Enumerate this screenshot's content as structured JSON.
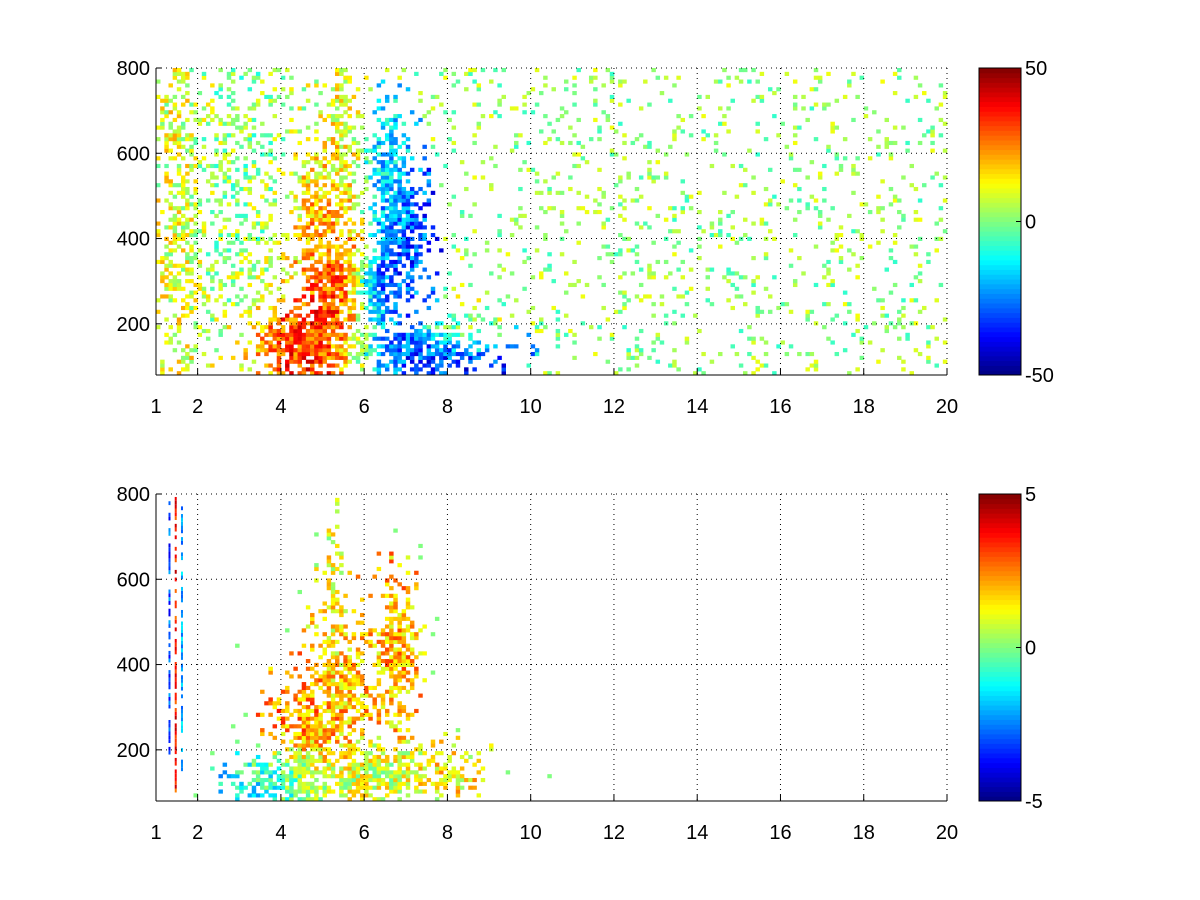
{
  "chart_data": [
    {
      "type": "heatmap",
      "title": "",
      "xlabel": "",
      "ylabel": "",
      "xlim": [
        1,
        20
      ],
      "ylim": [
        80,
        800
      ],
      "xticks": [
        1,
        2,
        4,
        6,
        8,
        10,
        12,
        14,
        16,
        18,
        20
      ],
      "xtick_labels": [
        "1",
        "2",
        "4",
        "6",
        "8",
        "10",
        "12",
        "14",
        "16",
        "18",
        "20"
      ],
      "yticks": [
        200,
        400,
        600,
        800
      ],
      "ytick_labels": [
        "200",
        "400",
        "600",
        "800"
      ],
      "grid": true,
      "colormap": "jet",
      "clim": [
        -50,
        50
      ],
      "colorbar_ticks": [
        -50,
        0,
        50
      ],
      "colorbar_labels": [
        "-50",
        "0",
        "50"
      ],
      "blobs": [
        {
          "x": 4.6,
          "y": 160,
          "sx": 0.9,
          "sy": 70,
          "value": 42,
          "density": 0.95
        },
        {
          "x": 5.3,
          "y": 290,
          "sx": 0.55,
          "sy": 120,
          "value": 36,
          "density": 0.9
        },
        {
          "x": 5.0,
          "y": 420,
          "sx": 0.5,
          "sy": 140,
          "value": 18,
          "density": 0.8
        },
        {
          "x": 5.5,
          "y": 620,
          "sx": 0.25,
          "sy": 160,
          "value": 10,
          "density": 0.7
        },
        {
          "x": 6.8,
          "y": 420,
          "sx": 0.45,
          "sy": 110,
          "value": -30,
          "density": 0.9
        },
        {
          "x": 6.6,
          "y": 560,
          "sx": 0.35,
          "sy": 90,
          "value": -12,
          "density": 0.75
        },
        {
          "x": 6.3,
          "y": 270,
          "sx": 0.4,
          "sy": 60,
          "value": -35,
          "density": 0.85
        },
        {
          "x": 7.2,
          "y": 140,
          "sx": 1.2,
          "sy": 40,
          "value": -32,
          "density": 0.9
        },
        {
          "x": 8.4,
          "y": 190,
          "sx": 0.6,
          "sy": 30,
          "value": 8,
          "density": 0.6
        },
        {
          "x": 1.6,
          "y": 440,
          "sx": 0.35,
          "sy": 360,
          "value": 12,
          "density": 0.55
        },
        {
          "x": 3.0,
          "y": 500,
          "sx": 1.0,
          "sy": 300,
          "value": 2,
          "density": 0.35
        }
      ],
      "background": {
        "density": 0.1,
        "value_range": [
          -8,
          12
        ]
      }
    },
    {
      "type": "heatmap",
      "title": "",
      "xlabel": "",
      "ylabel": "",
      "xlim": [
        1,
        20
      ],
      "ylim": [
        80,
        800
      ],
      "xticks": [
        1,
        2,
        4,
        6,
        8,
        10,
        12,
        14,
        16,
        18,
        20
      ],
      "xtick_labels": [
        "1",
        "2",
        "4",
        "6",
        "8",
        "10",
        "12",
        "14",
        "16",
        "18",
        "20"
      ],
      "yticks": [
        200,
        400,
        600,
        800
      ],
      "ytick_labels": [
        "200",
        "400",
        "600",
        "800"
      ],
      "grid": true,
      "colormap": "jet",
      "clim": [
        -5,
        5
      ],
      "colorbar_ticks": [
        -5,
        0,
        5
      ],
      "colorbar_labels": [
        "-5",
        "0",
        "5"
      ],
      "blobs": [
        {
          "x": 4.7,
          "y": 230,
          "sx": 0.6,
          "sy": 90,
          "value": 2.5,
          "density": 0.9
        },
        {
          "x": 5.4,
          "y": 330,
          "sx": 0.5,
          "sy": 130,
          "value": 1.8,
          "density": 0.85
        },
        {
          "x": 5.3,
          "y": 560,
          "sx": 0.15,
          "sy": 120,
          "value": 1.0,
          "density": 0.6
        },
        {
          "x": 6.8,
          "y": 420,
          "sx": 0.35,
          "sy": 120,
          "value": 2.0,
          "density": 0.85
        },
        {
          "x": 4.2,
          "y": 130,
          "sx": 0.8,
          "sy": 45,
          "value": -1.5,
          "density": 0.85
        },
        {
          "x": 6.2,
          "y": 150,
          "sx": 1.2,
          "sy": 45,
          "value": 0.8,
          "density": 0.9
        },
        {
          "x": 8.0,
          "y": 150,
          "sx": 0.5,
          "sy": 40,
          "value": 1.5,
          "density": 0.75
        }
      ],
      "streaks": [
        {
          "x": 1.3,
          "y0": 180,
          "y1": 780,
          "value": -3
        },
        {
          "x": 1.45,
          "y0": 100,
          "y1": 790,
          "value": 3.5
        },
        {
          "x": 1.6,
          "y0": 150,
          "y1": 770,
          "value": -2
        }
      ],
      "background": {
        "density": 0.0,
        "value_range": [
          0,
          0
        ]
      }
    }
  ]
}
